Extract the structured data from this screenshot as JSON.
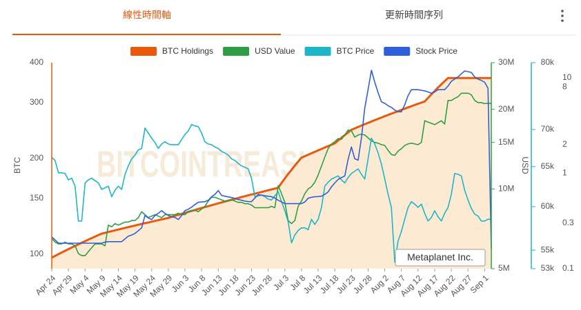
{
  "tabs": [
    "線性時間軸",
    "更新時間序列"
  ],
  "chart_data": {
    "type": "line",
    "log_scale": true,
    "grid": false,
    "watermark": "BITCOINTREASURIES.NET",
    "annotation": "Metaplanet Inc.",
    "ylabel": "BTC",
    "y2label": "USD",
    "categories": [
      "Apr 24",
      null,
      null,
      null,
      null,
      "Apr 29",
      null,
      null,
      null,
      null,
      "May 4",
      null,
      null,
      null,
      null,
      "May 9",
      null,
      null,
      null,
      null,
      "May 14",
      null,
      null,
      null,
      null,
      "May 19",
      null,
      null,
      null,
      null,
      "May 24",
      null,
      null,
      null,
      null,
      "May 29",
      null,
      null,
      null,
      null,
      "Jun 3",
      null,
      null,
      null,
      null,
      "Jun 8",
      null,
      null,
      null,
      null,
      "Jun 13",
      null,
      null,
      null,
      null,
      "Jun 18",
      null,
      null,
      null,
      null,
      "Jun 23",
      null,
      null,
      null,
      null,
      "Jun 28",
      null,
      null,
      null,
      null,
      "Jul 3",
      null,
      null,
      null,
      null,
      "Jul 8",
      null,
      null,
      null,
      null,
      "Jul 13",
      null,
      null,
      null,
      null,
      "Jul 18",
      null,
      null,
      null,
      null,
      "Jul 23",
      null,
      null,
      null,
      null,
      "Jul 28",
      null,
      null,
      null,
      null,
      "Aug 2",
      null,
      null,
      null,
      null,
      "Aug 7",
      null,
      null,
      null,
      null,
      "Aug 12",
      null,
      null,
      null,
      null,
      "Aug 17",
      null,
      null,
      null,
      null,
      "Aug 22",
      null,
      null,
      null,
      null,
      "Aug 27",
      null,
      null,
      null,
      null,
      "Sep 1",
      null,
      null
    ],
    "ylim": [
      90,
      400
    ],
    "yticks": [
      100,
      150,
      200,
      300,
      400
    ],
    "y2lim": [
      5000000,
      30000000
    ],
    "y2ticks": [
      {
        "value": 5000000,
        "label": "5M"
      },
      {
        "value": 10000000,
        "label": "10M"
      },
      {
        "value": 15000000,
        "label": "15M"
      },
      {
        "value": 20000000,
        "label": "20M"
      },
      {
        "value": 30000000,
        "label": "30M"
      }
    ],
    "y3lim": [
      53000,
      80000
    ],
    "y3ticks": [
      {
        "value": 53000,
        "label": "53k"
      },
      {
        "value": 55000,
        "label": "55k"
      },
      {
        "value": 60000,
        "label": "60k"
      },
      {
        "value": 65000,
        "label": "65k"
      },
      {
        "value": 70000,
        "label": "70k"
      },
      {
        "value": 80000,
        "label": "80k"
      }
    ],
    "y4lim": [
      0.1,
      14.4
    ],
    "y4ticks": [
      0.1,
      0.3,
      1,
      2,
      8,
      10
    ],
    "series": [
      {
        "name": "BTC Holdings",
        "color": "#e8590c",
        "area_color": "#fcebd2",
        "axis": "y",
        "values": [
          97.5,
          98.7,
          100,
          101.2,
          102.4,
          103.7,
          104.9,
          106.1,
          107.4,
          108.6,
          109.8,
          111.1,
          112.3,
          113.5,
          114.8,
          116,
          116.7,
          117.4,
          118.1,
          118.8,
          119.5,
          120.2,
          120.9,
          121.6,
          122.3,
          123,
          123.7,
          124.4,
          125.1,
          125.8,
          126.5,
          127.2,
          127.9,
          128.6,
          129.3,
          130,
          131,
          132,
          132.9,
          133.9,
          134.8,
          135.8,
          136.7,
          137.7,
          138.7,
          139.6,
          140.6,
          141.5,
          142.5,
          143.4,
          144.4,
          145.4,
          146.3,
          147.3,
          148.2,
          149.2,
          150.1,
          151.1,
          152.1,
          153,
          154,
          154.9,
          155.9,
          156.8,
          157.8,
          158.8,
          159.7,
          160.7,
          161.8,
          167.4,
          173,
          178.6,
          184.2,
          189.8,
          195.4,
          201,
          203.2,
          205.4,
          207.6,
          209.8,
          212,
          214.2,
          216.4,
          218.6,
          220.8,
          223,
          227.6,
          232.2,
          236.8,
          241.4,
          246,
          248.5,
          251.1,
          253.6,
          256.2,
          258.7,
          261.3,
          263.8,
          266.4,
          268.9,
          271.5,
          274,
          276.5,
          279.1,
          281.6,
          284.2,
          286.7,
          289.3,
          291.8,
          294.4,
          296.9,
          299.5,
          302,
          310,
          318,
          326,
          334,
          342,
          350,
          358,
          358,
          358,
          358,
          358,
          358,
          358,
          358,
          358,
          358,
          358,
          358,
          358,
          358
        ]
      },
      {
        "name": "USD Value",
        "color": "#2e9e44",
        "axis": "y2",
        "values": [
          6500000,
          6300000,
          6200000,
          6200000,
          6300000,
          6200000,
          6200000,
          6100000,
          5700000,
          5600000,
          5600000,
          5800000,
          6000000,
          6200000,
          6200000,
          6200000,
          6100000,
          7300000,
          7200000,
          7400000,
          7300000,
          7400000,
          7500000,
          7500000,
          7600000,
          7600000,
          7800000,
          8200000,
          8000000,
          7800000,
          7900000,
          8000000,
          7900000,
          7800000,
          8000000,
          8000000,
          8000000,
          8000000,
          8100000,
          8000000,
          8000000,
          8200000,
          8300000,
          8300000,
          8200000,
          8400000,
          8600000,
          9000000,
          9300000,
          9300000,
          9200000,
          9100000,
          9000000,
          9000000,
          9100000,
          9000000,
          8900000,
          8900000,
          8800000,
          8800000,
          8700000,
          8500000,
          8500000,
          8500000,
          8500000,
          8500000,
          8600000,
          8500000,
          10300000,
          9600000,
          8900000,
          7600000,
          7400000,
          7600000,
          8600000,
          9000000,
          9600000,
          10000000,
          10200000,
          10600000,
          11300000,
          12200000,
          13200000,
          14200000,
          14800000,
          15100000,
          15500000,
          15400000,
          16000000,
          16700000,
          16600000,
          15700000,
          16000000,
          16100000,
          16000000,
          15600000,
          15200000,
          15000000,
          14900000,
          14700000,
          14600000,
          14000000,
          13500000,
          13400000,
          13900000,
          14200000,
          14600000,
          14800000,
          14900000,
          14800000,
          14700000,
          15000000,
          18100000,
          17900000,
          17700000,
          17500000,
          17800000,
          18100000,
          17600000,
          21600000,
          21600000,
          22000000,
          22300000,
          23000000,
          23000000,
          23000000,
          22700000,
          21600000,
          21200000,
          21200000,
          21000000,
          21100000,
          21000000
        ]
      },
      {
        "name": "BTC Price",
        "color": "#1cb5c9",
        "axis": "y3",
        "values": [
          66200,
          65800,
          64200,
          64200,
          64100,
          63300,
          63500,
          62500,
          58300,
          58300,
          62900,
          63300,
          63500,
          63200,
          62900,
          62100,
          62300,
          62500,
          61200,
          62000,
          62500,
          62100,
          64000,
          65100,
          66000,
          66500,
          67200,
          67400,
          70200,
          69500,
          68800,
          68200,
          67400,
          68000,
          68300,
          68000,
          67900,
          67900,
          67900,
          68600,
          69300,
          69800,
          70700,
          70500,
          70400,
          69500,
          68300,
          68000,
          67900,
          67600,
          67400,
          67000,
          66800,
          66500,
          66000,
          65800,
          65400,
          65100,
          64900,
          64700,
          63500,
          61200,
          61300,
          61400,
          61200,
          60900,
          60800,
          61300,
          61800,
          60600,
          59500,
          58200,
          55800,
          56700,
          57200,
          57500,
          57500,
          57300,
          58500,
          57900,
          58500,
          59900,
          62500,
          63000,
          63400,
          63600,
          63800,
          63300,
          62900,
          63600,
          64100,
          64400,
          64700,
          64000,
          63400,
          66000,
          68800,
          68000,
          66800,
          65300,
          63400,
          61500,
          59900,
          53700,
          56000,
          57100,
          58500,
          59900,
          60600,
          60300,
          59900,
          60300,
          59200,
          58300,
          58700,
          59500,
          58800,
          58300,
          59200,
          59900,
          61500,
          64100,
          64000,
          63800,
          62000,
          60800,
          59800,
          59100,
          58900,
          58300,
          58300,
          58500,
          58500
        ]
      },
      {
        "name": "Stock Price",
        "color": "#2f5fd8",
        "axis": "y4",
        "values": [
          0.215,
          0.2,
          0.185,
          0.185,
          0.185,
          0.185,
          0.185,
          0.185,
          0.185,
          0.185,
          0.185,
          0.185,
          0.185,
          0.185,
          0.185,
          0.185,
          0.19,
          0.192,
          0.192,
          0.192,
          0.192,
          0.192,
          0.205,
          0.219,
          0.225,
          0.234,
          0.25,
          0.268,
          0.361,
          0.34,
          0.327,
          0.361,
          0.38,
          0.406,
          0.38,
          0.361,
          0.35,
          0.344,
          0.327,
          0.36,
          0.406,
          0.42,
          0.441,
          0.47,
          0.496,
          0.5,
          0.504,
          0.52,
          0.567,
          0.6,
          0.659,
          0.586,
          0.575,
          0.565,
          0.557,
          0.545,
          0.53,
          0.521,
          0.51,
          0.505,
          0.504,
          0.55,
          0.596,
          0.59,
          0.58,
          0.575,
          0.567,
          0.55,
          0.521,
          0.5,
          0.48,
          0.48,
          0.48,
          0.48,
          0.48,
          0.48,
          0.5,
          0.548,
          0.56,
          0.567,
          0.57,
          0.575,
          0.6,
          0.637,
          0.72,
          0.792,
          0.861,
          0.9,
          0.936,
          1.4,
          1.885,
          1.42,
          1.37,
          2.34,
          4.8,
          7.5,
          12.0,
          9.0,
          7.0,
          5.6,
          5.4,
          5.1,
          4.9,
          4.6,
          4.4,
          4.4,
          5.2,
          6.5,
          7.5,
          7.5,
          7.5,
          7.4,
          7.3,
          7.1,
          6.9,
          7.1,
          7.5,
          7.5,
          7.5,
          8.2,
          9.2,
          9.7,
          10.2,
          11.0,
          11.8,
          11.6,
          11.4,
          10.2,
          9.7,
          9.4,
          9.0,
          7.8,
          0.162
        ]
      }
    ]
  }
}
